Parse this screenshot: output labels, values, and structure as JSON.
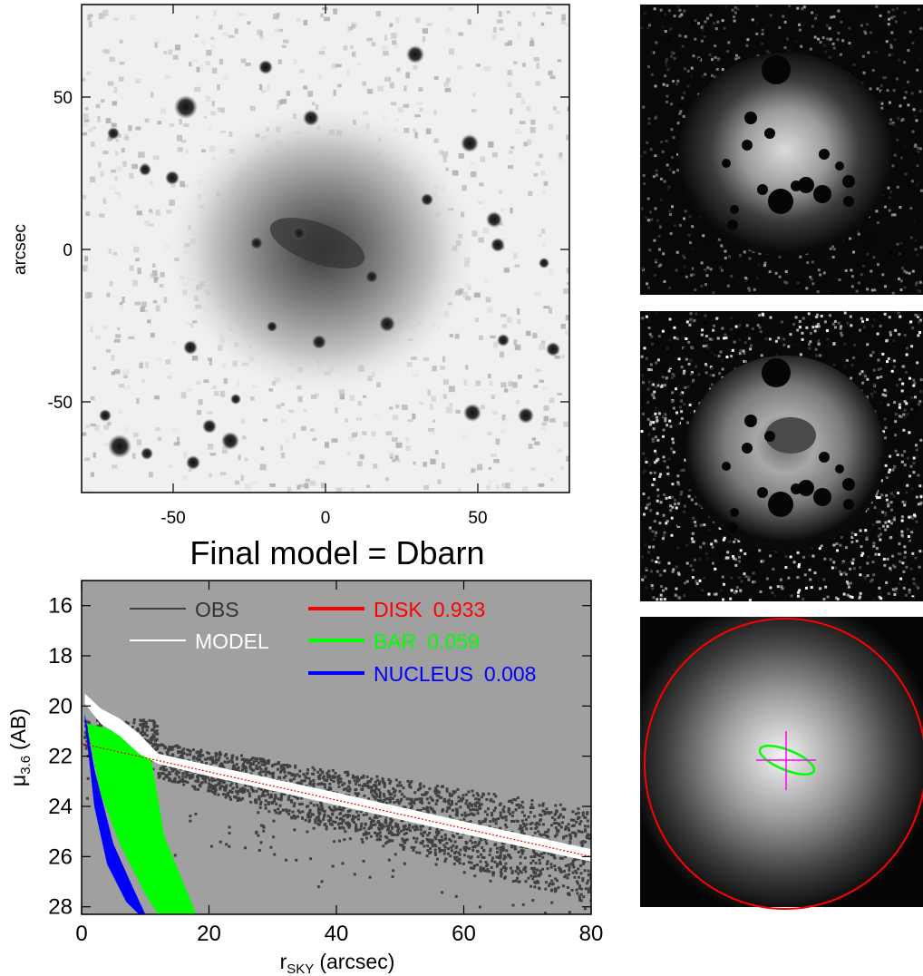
{
  "top_panel": {
    "ylabel": "arcsec",
    "xticks": [
      "-50",
      "0",
      "50"
    ],
    "yticks": [
      "50",
      "0",
      "-50"
    ]
  },
  "title": "Final model = Dbarn",
  "chart_data": {
    "type": "scatter",
    "xlabel": "r",
    "xlabel_sub": "SKY",
    "xlabel_unit": "(arcsec)",
    "ylabel": "μ",
    "ylabel_sub": "3.6",
    "ylabel_unit": "(AB)",
    "xlim": [
      0,
      80
    ],
    "ylim": [
      28.3,
      15.0
    ],
    "y_inverted": true,
    "xticks": [
      "0",
      "20",
      "40",
      "60",
      "80"
    ],
    "yticks": [
      "16",
      "18",
      "20",
      "22",
      "24",
      "26",
      "28"
    ],
    "background": "#a0a0a0",
    "legend_placement": "top",
    "series": [
      {
        "name": "OBS",
        "color": "#404040",
        "kind": "scatter"
      },
      {
        "name": "MODEL",
        "color": "#ffffff",
        "kind": "band"
      },
      {
        "name": "DISK",
        "fraction": "0.933",
        "color": "#ff0000",
        "kind": "line",
        "x": [
          0,
          80
        ],
        "y": [
          21.5,
          26.0
        ]
      },
      {
        "name": "BAR",
        "fraction": "0.059",
        "color": "#00ff00",
        "kind": "band",
        "upper": [
          [
            1,
            20.7
          ],
          [
            4,
            20.9
          ],
          [
            8,
            21.4
          ],
          [
            11,
            22.2
          ],
          [
            13,
            25.2
          ],
          [
            18,
            28.3
          ]
        ],
        "lower": [
          [
            1,
            21.0
          ],
          [
            3,
            23.5
          ],
          [
            6,
            25.5
          ],
          [
            10,
            27.5
          ],
          [
            12,
            28.3
          ]
        ]
      },
      {
        "name": "NUCLEUS",
        "fraction": "0.008",
        "color": "#0000ff",
        "kind": "band",
        "upper": [
          [
            0.5,
            20.3
          ],
          [
            2,
            22.5
          ],
          [
            5,
            25.5
          ],
          [
            8,
            27.2
          ],
          [
            10,
            28.3
          ]
        ],
        "lower": [
          [
            0.5,
            20.6
          ],
          [
            2,
            24.0
          ],
          [
            4,
            26.3
          ],
          [
            7,
            27.8
          ],
          [
            9,
            28.3
          ]
        ]
      }
    ]
  },
  "colors": {
    "disk": "#ff0000",
    "bar": "#00ff00",
    "nucleus": "#0000ff",
    "cross": "#ff00ff"
  }
}
